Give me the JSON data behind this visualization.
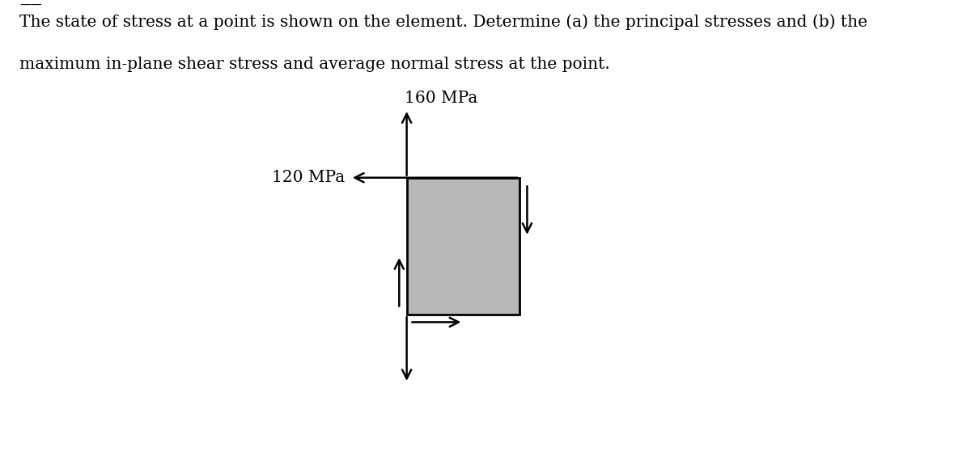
{
  "title_text_line1": "The state of stress at a point is shown on the element. Determine (a) the principal stresses and (b) the",
  "title_text_line2": "maximum in-plane shear stress and average normal stress at the point.",
  "label_160": "160 MPa",
  "label_120": "120 MPa",
  "box_color": "#b8b8b8",
  "box_edge_color": "#000000",
  "background_color": "#ffffff",
  "text_color": "#000000",
  "title_fontsize": 14.5,
  "label_fontsize": 14.5,
  "figsize": [
    12.0,
    5.8
  ],
  "dpi": 100
}
